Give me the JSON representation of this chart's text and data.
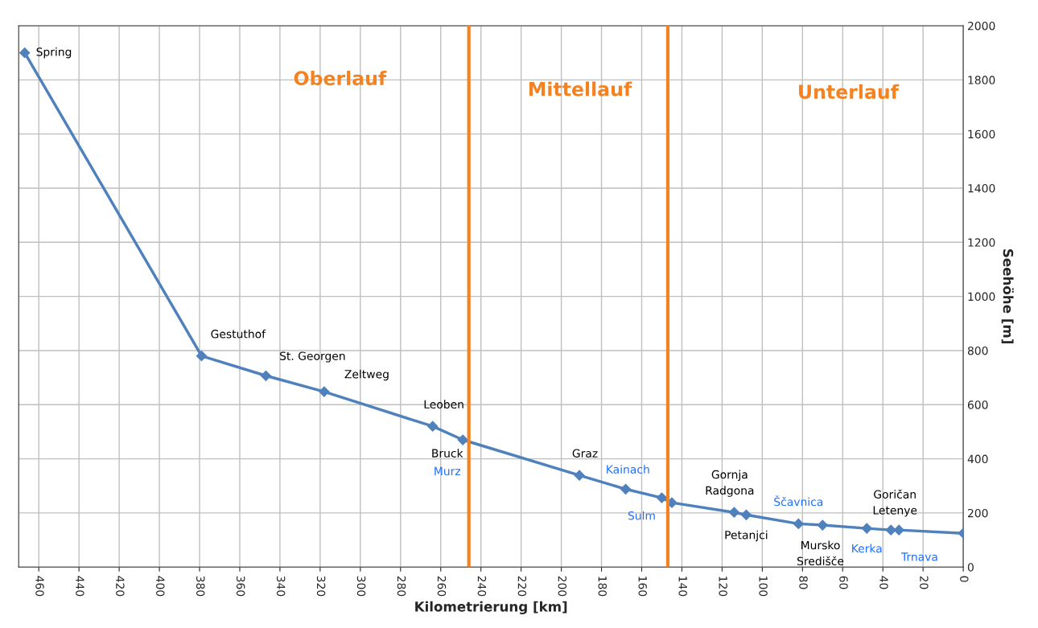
{
  "chart_data": {
    "type": "line",
    "xlabel": "Kilometrierung [km]",
    "ylabel": "Seehöhe [m]",
    "x": [
      467,
      379,
      347,
      318,
      264,
      249,
      191,
      168,
      150,
      145,
      114,
      108,
      82,
      70,
      48,
      36,
      32,
      0
    ],
    "series": [
      {
        "color": "#4f81bd",
        "values": [
          1900,
          780,
          707,
          648,
          520,
          470,
          339,
          288,
          256,
          238,
          202,
          193,
          160,
          155,
          143,
          137,
          137,
          125
        ]
      }
    ],
    "marker": "diamond",
    "line_style": "solid",
    "xlim": [
      470,
      0
    ],
    "xticks": [
      460,
      440,
      420,
      400,
      380,
      360,
      340,
      320,
      300,
      280,
      260,
      240,
      220,
      200,
      180,
      160,
      140,
      120,
      100,
      80,
      60,
      40,
      20,
      0
    ],
    "ylim": [
      0,
      2000
    ],
    "yticks": [
      0,
      200,
      400,
      600,
      800,
      1000,
      1200,
      1400,
      1600,
      1800,
      2000
    ],
    "grid": true,
    "legend": false,
    "ref_lines": [
      {
        "axis": "x",
        "value": 246,
        "color": "#f58220"
      },
      {
        "axis": "x",
        "value": 147,
        "color": "#f58220"
      }
    ],
    "annotations": [
      {
        "text": "Spring",
        "x": 467,
        "y": 1900
      },
      {
        "text": "Gestuthof",
        "x": 379,
        "y": 780
      },
      {
        "text": "St. Georgen",
        "x": 347,
        "y": 707
      },
      {
        "text": "Zeltweg",
        "x": 318,
        "y": 648
      },
      {
        "text": "Leoben",
        "x": 264,
        "y": 520
      },
      {
        "text": "Bruck",
        "x": 249,
        "y": 470
      },
      {
        "text": "Murz",
        "x": 249,
        "y": 470
      },
      {
        "text": "Graz",
        "x": 191,
        "y": 339
      },
      {
        "text": "Kainach",
        "x": 168,
        "y": 288
      },
      {
        "text": "Sulm",
        "x": 150,
        "y": 256
      },
      {
        "text": "Gornja\nRadgona",
        "x": 114,
        "y": 202
      },
      {
        "text": "Petanjci",
        "x": 108,
        "y": 193
      },
      {
        "text": "Ščavnica",
        "x": 82,
        "y": 160
      },
      {
        "text": "Mursko\nSredišče",
        "x": 70,
        "y": 155
      },
      {
        "text": "Kerka",
        "x": 48,
        "y": 143
      },
      {
        "text": "Goričan\nLetenye",
        "x": 34,
        "y": 137
      },
      {
        "text": "Trnava",
        "x": 32,
        "y": 137
      },
      "Oberlauf",
      "Mittellauf",
      "Unterlauf"
    ]
  }
}
